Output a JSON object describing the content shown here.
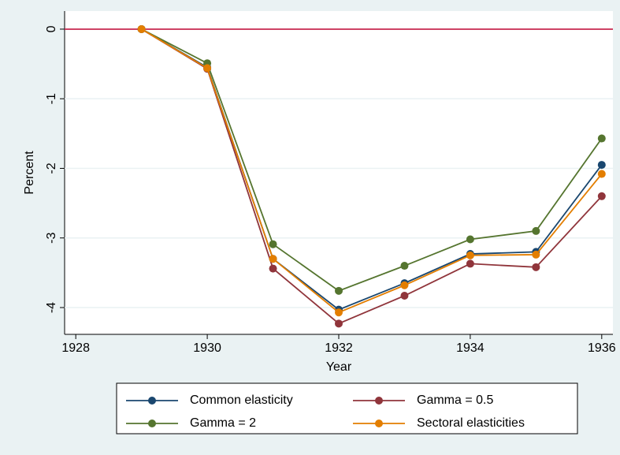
{
  "chart_data": {
    "type": "line",
    "x_label": "Year",
    "y_label": "Percent",
    "x": [
      1929,
      1930,
      1931,
      1932,
      1933,
      1934,
      1935,
      1936
    ],
    "series": [
      {
        "name": "Common elasticity",
        "color": "#1a476f",
        "values": [
          0,
          -0.55,
          -3.3,
          -4.03,
          -3.65,
          -3.23,
          -3.2,
          -1.95
        ]
      },
      {
        "name": "Gamma = 0.5",
        "color": "#90353b",
        "values": [
          0,
          -0.57,
          -3.44,
          -4.23,
          -3.83,
          -3.37,
          -3.42,
          -2.4
        ]
      },
      {
        "name": "Gamma = 2",
        "color": "#55752f",
        "values": [
          0,
          -0.49,
          -3.09,
          -3.76,
          -3.4,
          -3.02,
          -2.9,
          -1.57
        ]
      },
      {
        "name": "Sectoral elasticities",
        "color": "#e37e00",
        "values": [
          0,
          -0.56,
          -3.3,
          -4.07,
          -3.68,
          -3.25,
          -3.24,
          -2.08
        ]
      }
    ],
    "xlim": [
      1927.83,
      1936.17
    ],
    "xticks": [
      1928,
      1930,
      1932,
      1934,
      1936
    ],
    "ylim": [
      -4.385,
      0.26
    ],
    "yticks": [
      0,
      -1,
      -2,
      -3,
      -4
    ],
    "grid": true,
    "reference_line": 0,
    "reference_color": "#c10534",
    "legend": "bottom"
  }
}
